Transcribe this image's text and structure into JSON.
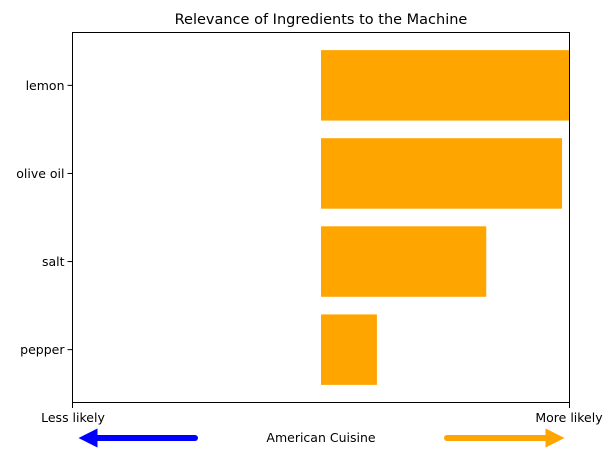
{
  "chart_data": {
    "type": "bar",
    "orientation": "horizontal",
    "title": "Relevance of Ingredients to the Machine",
    "categories": [
      "lemon",
      "olive oil",
      "salt",
      "pepper"
    ],
    "values": [
      1.0,
      0.97,
      0.665,
      0.225
    ],
    "xlim": [
      -1,
      1
    ],
    "bar_color": "#ffa500",
    "grid": false,
    "legend": "none",
    "x_tick_labels": {
      "left": "Less likely",
      "right": "More likely"
    },
    "footer": {
      "label": "American Cuisine",
      "left_arrow_color": "#0000ff",
      "right_arrow_color": "#ffa500"
    }
  }
}
